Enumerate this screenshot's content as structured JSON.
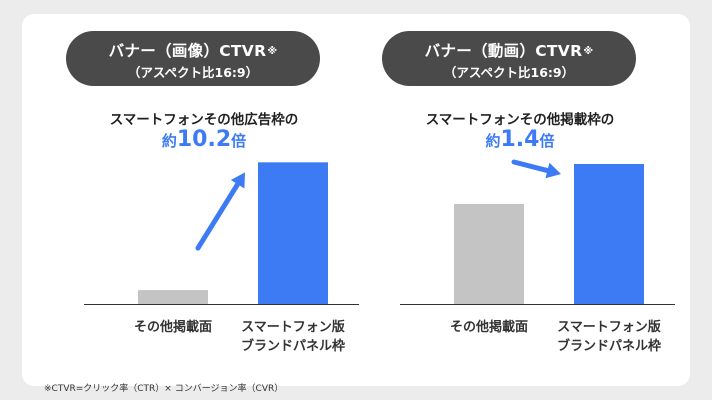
{
  "chart_data": [
    {
      "type": "bar",
      "title_main": "バナー（画像）CTVR",
      "title_mark": "※",
      "title_sub": "（アスペクト比16:9）",
      "comparison_text": "スマートフォンその他広告枠の",
      "multiplier_prefix": "約",
      "multiplier_value": "10.2",
      "multiplier_suffix": "倍",
      "categories": [
        "その他掲載面",
        "スマートフォン版\nブランドパネル枠"
      ],
      "category_lines": [
        [
          "その他掲載面"
        ],
        [
          "スマートフォン版",
          "ブランドパネル枠"
        ]
      ],
      "values": [
        1,
        10.2
      ],
      "colors": [
        "#c4c4c4",
        "#3d7bf5"
      ],
      "ylim": [
        0,
        10.8
      ],
      "grid": false
    },
    {
      "type": "bar",
      "title_main": "バナー（動画）CTVR",
      "title_mark": "※",
      "title_sub": "（アスペクト比16:9）",
      "comparison_text": "スマートフォンその他掲載枠の",
      "multiplier_prefix": "約",
      "multiplier_value": "1.4",
      "multiplier_suffix": "倍",
      "categories": [
        "その他掲載面",
        "スマートフォン版\nブランドパネル枠"
      ],
      "category_lines": [
        [
          "その他掲載面"
        ],
        [
          "スマートフォン版",
          "ブランドパネル枠"
        ]
      ],
      "values": [
        1,
        1.4
      ],
      "colors": [
        "#c4c4c4",
        "#3d7bf5"
      ],
      "ylim": [
        0,
        1.5
      ],
      "grid": false
    }
  ],
  "footnote": "※CTVR=クリック率（CTR）× コンバージョン率（CVR）",
  "arrow_color": "#3d7bf5",
  "axis_color": "#333333"
}
